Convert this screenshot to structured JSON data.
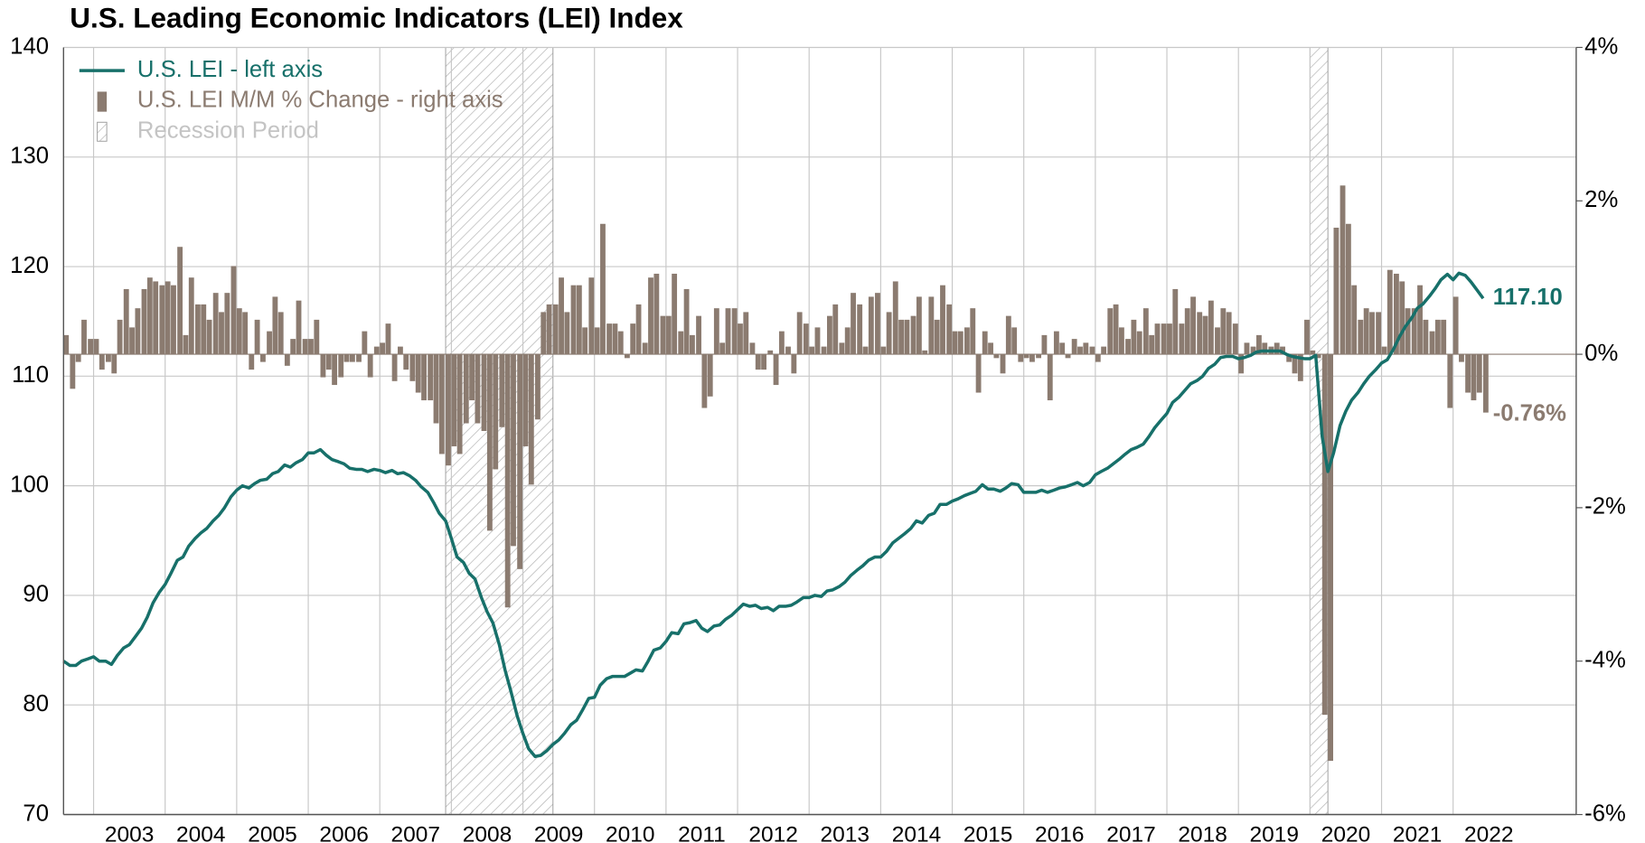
{
  "chart_data": {
    "type": "line_bar_combo",
    "title": "U.S. Leading Economic Indicators (LEI) Index",
    "xlim": [
      2002.58,
      2023.72
    ],
    "xticks": [
      {
        "value": 2003,
        "label": "2003"
      },
      {
        "value": 2004,
        "label": "2004"
      },
      {
        "value": 2005,
        "label": "2005"
      },
      {
        "value": 2006,
        "label": "2006"
      },
      {
        "value": 2007,
        "label": "2007"
      },
      {
        "value": 2008,
        "label": "2008"
      },
      {
        "value": 2009,
        "label": "2009"
      },
      {
        "value": 2010,
        "label": "2010"
      },
      {
        "value": 2011,
        "label": "2011"
      },
      {
        "value": 2012,
        "label": "2012"
      },
      {
        "value": 2013,
        "label": "2013"
      },
      {
        "value": 2014,
        "label": "2014"
      },
      {
        "value": 2015,
        "label": "2015"
      },
      {
        "value": 2016,
        "label": "2016"
      },
      {
        "value": 2017,
        "label": "2017"
      },
      {
        "value": 2018,
        "label": "2018"
      },
      {
        "value": 2019,
        "label": "2019"
      },
      {
        "value": 2020,
        "label": "2020"
      },
      {
        "value": 2021,
        "label": "2021"
      },
      {
        "value": 2022,
        "label": "2022"
      }
    ],
    "ylim": [
      70,
      140
    ],
    "yticks": [
      70,
      80,
      90,
      100,
      110,
      120,
      130,
      140
    ],
    "y2lim": [
      -6,
      4
    ],
    "y2ticks": [
      {
        "value": -6,
        "label": "-6%"
      },
      {
        "value": -4,
        "label": "-4%"
      },
      {
        "value": -2,
        "label": "-2%"
      },
      {
        "value": 0,
        "label": "0%"
      },
      {
        "value": 2,
        "label": "2%"
      },
      {
        "value": 4,
        "label": "4%"
      }
    ],
    "grid": true,
    "legend": "upper left",
    "x": [
      2002.58,
      2002.67,
      2002.75,
      2002.83,
      2002.92,
      2003,
      2003.08,
      2003.17,
      2003.25,
      2003.33,
      2003.42,
      2003.5,
      2003.58,
      2003.67,
      2003.75,
      2003.83,
      2003.92,
      2004,
      2004.08,
      2004.17,
      2004.25,
      2004.33,
      2004.42,
      2004.5,
      2004.58,
      2004.67,
      2004.75,
      2004.83,
      2004.92,
      2005,
      2005.08,
      2005.17,
      2005.25,
      2005.33,
      2005.42,
      2005.5,
      2005.58,
      2005.67,
      2005.75,
      2005.83,
      2005.92,
      2006,
      2006.08,
      2006.17,
      2006.25,
      2006.33,
      2006.42,
      2006.5,
      2006.58,
      2006.67,
      2006.75,
      2006.83,
      2006.92,
      2007,
      2007.08,
      2007.17,
      2007.25,
      2007.33,
      2007.42,
      2007.5,
      2007.58,
      2007.67,
      2007.75,
      2007.83,
      2007.92,
      2008,
      2008.08,
      2008.17,
      2008.25,
      2008.33,
      2008.42,
      2008.5,
      2008.58,
      2008.67,
      2008.75,
      2008.83,
      2008.92,
      2009,
      2009.08,
      2009.17,
      2009.25,
      2009.33,
      2009.42,
      2009.5,
      2009.58,
      2009.67,
      2009.75,
      2009.83,
      2009.92,
      2010,
      2010.08,
      2010.17,
      2010.25,
      2010.33,
      2010.42,
      2010.5,
      2010.58,
      2010.67,
      2010.75,
      2010.83,
      2010.92,
      2011,
      2011.08,
      2011.17,
      2011.25,
      2011.33,
      2011.42,
      2011.5,
      2011.58,
      2011.67,
      2011.75,
      2011.83,
      2011.92,
      2012,
      2012.08,
      2012.17,
      2012.25,
      2012.33,
      2012.42,
      2012.5,
      2012.58,
      2012.67,
      2012.75,
      2012.83,
      2012.92,
      2013,
      2013.08,
      2013.17,
      2013.25,
      2013.33,
      2013.42,
      2013.5,
      2013.58,
      2013.67,
      2013.75,
      2013.83,
      2013.92,
      2014,
      2014.08,
      2014.17,
      2014.25,
      2014.33,
      2014.42,
      2014.5,
      2014.58,
      2014.67,
      2014.75,
      2014.83,
      2014.92,
      2015,
      2015.08,
      2015.17,
      2015.25,
      2015.33,
      2015.42,
      2015.5,
      2015.58,
      2015.67,
      2015.75,
      2015.83,
      2015.92,
      2016,
      2016.08,
      2016.17,
      2016.25,
      2016.33,
      2016.42,
      2016.5,
      2016.58,
      2016.67,
      2016.75,
      2016.83,
      2016.92,
      2017,
      2017.08,
      2017.17,
      2017.25,
      2017.33,
      2017.42,
      2017.5,
      2017.58,
      2017.67,
      2017.75,
      2017.83,
      2017.92,
      2018,
      2018.08,
      2018.17,
      2018.25,
      2018.33,
      2018.42,
      2018.5,
      2018.58,
      2018.67,
      2018.75,
      2018.83,
      2018.92,
      2019,
      2019.08,
      2019.17,
      2019.25,
      2019.33,
      2019.42,
      2019.5,
      2019.58,
      2019.67,
      2019.75,
      2019.83,
      2019.92,
      2020,
      2020.08,
      2020.17,
      2020.25,
      2020.33,
      2020.42,
      2020.5,
      2020.58,
      2020.67,
      2020.75,
      2020.83,
      2020.92,
      2021,
      2021.08,
      2021.17,
      2021.25,
      2021.33,
      2021.42,
      2021.5,
      2021.58,
      2021.67,
      2021.75,
      2021.83,
      2021.92,
      2022,
      2022.08,
      2022.17,
      2022.25,
      2022.33,
      2022.42
    ],
    "series": [
      {
        "name": "U.S. LEI - left axis",
        "kind": "line",
        "color": "#17706a",
        "end_label": "117.10",
        "values": [
          84.0,
          83.6,
          83.6,
          84.0,
          84.2,
          84.4,
          84.0,
          84.0,
          83.7,
          84.5,
          85.2,
          85.5,
          86.2,
          87.0,
          88.0,
          89.3,
          90.3,
          91.0,
          92.0,
          93.2,
          93.5,
          94.5,
          95.2,
          95.7,
          96.1,
          96.8,
          97.3,
          98.0,
          99.0,
          99.6,
          100.0,
          99.8,
          100.2,
          100.5,
          100.6,
          101.1,
          101.3,
          101.9,
          101.7,
          102.1,
          102.4,
          103.0,
          103.0,
          103.3,
          102.8,
          102.4,
          102.2,
          102.0,
          101.6,
          101.5,
          101.5,
          101.3,
          101.5,
          101.4,
          101.2,
          101.4,
          101.1,
          101.2,
          100.9,
          100.5,
          99.9,
          99.4,
          98.5,
          97.5,
          96.8,
          95.2,
          93.5,
          93.0,
          92.0,
          91.5,
          89.8,
          88.5,
          87.5,
          85.5,
          83.2,
          81.3,
          79.0,
          77.4,
          76.0,
          75.3,
          75.4,
          75.8,
          76.4,
          76.8,
          77.4,
          78.2,
          78.6,
          79.5,
          80.6,
          80.7,
          81.8,
          82.4,
          82.6,
          82.6,
          82.6,
          82.9,
          83.2,
          83.1,
          84.0,
          85.0,
          85.2,
          85.8,
          86.6,
          86.5,
          87.4,
          87.5,
          87.7,
          87.0,
          86.7,
          87.2,
          87.3,
          87.8,
          88.2,
          88.7,
          89.2,
          89.0,
          89.1,
          88.8,
          88.9,
          88.6,
          89.0,
          89.0,
          89.1,
          89.4,
          89.8,
          89.8,
          90.0,
          89.9,
          90.4,
          90.5,
          90.8,
          91.2,
          91.8,
          92.3,
          92.7,
          93.2,
          93.5,
          93.5,
          94.0,
          94.8,
          95.2,
          95.6,
          96.1,
          96.8,
          96.6,
          97.3,
          97.5,
          98.3,
          98.3,
          98.6,
          98.8,
          99.1,
          99.3,
          99.5,
          100.1,
          99.7,
          99.7,
          99.5,
          99.8,
          100.2,
          100.1,
          99.4,
          99.4,
          99.4,
          99.6,
          99.4,
          99.6,
          99.8,
          99.9,
          100.1,
          100.3,
          100.0,
          100.3,
          101.0,
          101.3,
          101.6,
          102.0,
          102.4,
          102.9,
          103.3,
          103.5,
          103.8,
          104.5,
          105.3,
          106.0,
          106.6,
          107.6,
          108.1,
          108.7,
          109.3,
          109.6,
          110.0,
          110.7,
          111.1,
          111.7,
          111.8,
          111.8,
          111.6,
          111.7,
          111.9,
          112.2,
          112.3,
          112.3,
          112.3,
          112.3,
          112.0,
          111.8,
          111.7,
          111.6,
          111.6,
          111.9,
          104.5,
          101.3,
          103.0,
          105.5,
          106.8,
          107.8,
          108.5,
          109.3,
          110.0,
          110.6,
          111.2,
          111.5,
          112.5,
          113.6,
          114.5,
          115.3,
          116.2,
          116.6,
          117.3,
          118.0,
          118.8,
          119.3,
          118.8,
          119.4,
          119.2,
          118.6,
          117.9,
          117.1
        ]
      },
      {
        "name": "U.S. LEI M/M % Change - right axis",
        "kind": "bar",
        "axis": "y2",
        "color": "#8b7b70",
        "end_label": "-0.76%",
        "values": [
          0.25,
          -0.45,
          -0.1,
          0.45,
          0.2,
          0.2,
          -0.2,
          -0.1,
          -0.25,
          0.45,
          0.85,
          0.35,
          0.6,
          0.85,
          1.0,
          0.95,
          0.9,
          0.95,
          0.9,
          1.4,
          0.25,
          1.0,
          0.65,
          0.65,
          0.45,
          0.8,
          0.55,
          0.8,
          1.15,
          0.6,
          0.55,
          -0.2,
          0.45,
          -0.1,
          0.3,
          0.75,
          0.55,
          -0.15,
          0.2,
          0.7,
          0.2,
          0.2,
          0.45,
          -0.3,
          -0.2,
          -0.4,
          -0.3,
          -0.1,
          -0.1,
          -0.1,
          0.3,
          -0.3,
          0.1,
          0.15,
          0.4,
          -0.35,
          0.1,
          -0.2,
          -0.35,
          -0.5,
          -0.6,
          -0.6,
          -0.9,
          -1.3,
          -1.45,
          -1.2,
          -1.3,
          -0.9,
          -0.6,
          -0.9,
          -1.0,
          -2.3,
          -1.5,
          -0.95,
          -3.3,
          -2.5,
          -2.8,
          -1.2,
          -1.7,
          -0.85,
          0.55,
          0.65,
          0.65,
          1.0,
          0.55,
          0.9,
          0.9,
          0.35,
          1.0,
          0.35,
          1.7,
          0.4,
          0.4,
          0.3,
          -0.05,
          0.4,
          0.65,
          0.15,
          1.0,
          1.05,
          0.5,
          0.5,
          1.05,
          0.3,
          0.85,
          0.25,
          0.5,
          -0.7,
          -0.55,
          0.6,
          0.15,
          0.6,
          0.6,
          0.4,
          0.55,
          0.15,
          -0.2,
          -0.2,
          0.05,
          -0.4,
          0.3,
          0.1,
          -0.25,
          0.55,
          0.4,
          0.1,
          0.35,
          0.1,
          0.5,
          0.65,
          0.15,
          0.35,
          0.8,
          0.65,
          0.1,
          0.75,
          0.8,
          0.1,
          0.55,
          0.95,
          0.45,
          0.45,
          0.5,
          0.75,
          0.05,
          0.75,
          0.45,
          0.9,
          0.65,
          0.3,
          0.3,
          0.35,
          0.6,
          -0.5,
          0.3,
          0.15,
          -0.05,
          -0.25,
          0.5,
          0.35,
          -0.1,
          -0.05,
          -0.1,
          -0.05,
          0.25,
          -0.6,
          0.3,
          0.15,
          -0.05,
          0.2,
          0.1,
          0.15,
          0.1,
          -0.1,
          0.1,
          0.6,
          0.65,
          0.35,
          0.2,
          0.45,
          0.3,
          0.6,
          0.25,
          0.4,
          0.4,
          0.4,
          0.85,
          0.4,
          0.6,
          0.75,
          0.55,
          0.5,
          0.7,
          0.35,
          0.6,
          0.55,
          0.4,
          -0.25,
          0.15,
          0.1,
          0.25,
          0.15,
          0.1,
          0.15,
          0.1,
          -0.1,
          -0.25,
          -0.35,
          0.45,
          0.05,
          -0.05,
          -4.7,
          -5.3,
          1.65,
          2.2,
          1.7,
          0.9,
          0.45,
          0.6,
          0.55,
          0.55,
          0.1,
          1.1,
          1.05,
          0.95,
          0.6,
          0.6,
          0.9,
          0.45,
          0.3,
          0.45,
          0.45,
          -0.7,
          0.75,
          -0.1,
          -0.5,
          -0.6,
          -0.5,
          -0.76
        ]
      }
    ],
    "recessions": {
      "name": "Recession Period",
      "color": "#9a9a9a",
      "periods": [
        [
          2007.92,
          2009.42
        ],
        [
          2020.0,
          2020.25
        ]
      ]
    }
  }
}
